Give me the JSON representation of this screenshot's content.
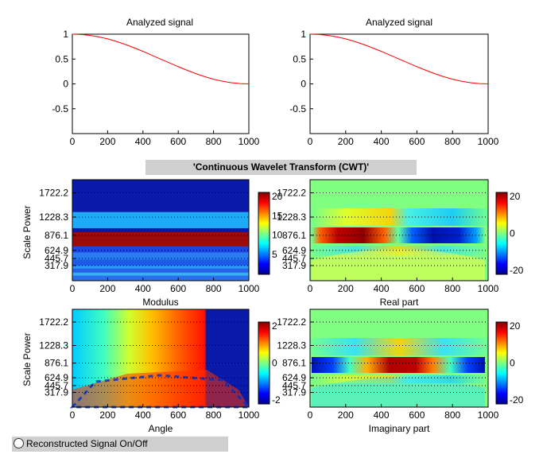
{
  "banner": {
    "label": "'Continuous Wavelet Transform (CWT)'"
  },
  "toggle": {
    "label": "Reconstructed Signal On/Off"
  },
  "chart_data": [
    {
      "id": "signal-left",
      "type": "line",
      "title": "Analyzed signal",
      "xlim": [
        0,
        1000
      ],
      "ylim": [
        -1,
        1
      ],
      "x_ticks": [
        0,
        200,
        400,
        600,
        800,
        1000
      ],
      "y_ticks": [
        1,
        0.5,
        0,
        -0.5
      ],
      "y_tick_labels": [
        "1",
        "0.5",
        "0",
        "-0.5"
      ],
      "series": [
        {
          "color": "#ff0000",
          "x": [
            0,
            50,
            100,
            150,
            200,
            250,
            300,
            350,
            400,
            450,
            500,
            550,
            600,
            650,
            700,
            750,
            800,
            850,
            900,
            950,
            1000
          ],
          "y": [
            1,
            0.994,
            0.976,
            0.946,
            0.905,
            0.854,
            0.794,
            0.727,
            0.655,
            0.578,
            0.5,
            0.422,
            0.345,
            0.273,
            0.206,
            0.146,
            0.095,
            0.054,
            0.024,
            0.006,
            0
          ]
        }
      ]
    },
    {
      "id": "signal-right",
      "type": "line",
      "title": "Analyzed signal",
      "xlim": [
        0,
        1000
      ],
      "ylim": [
        -1,
        1
      ],
      "x_ticks": [
        0,
        200,
        400,
        600,
        800,
        1000
      ],
      "y_ticks": [
        1,
        0.5,
        0,
        -0.5
      ],
      "y_tick_labels": [
        "1",
        "0.5",
        "0",
        "-0.5"
      ],
      "series": [
        {
          "color": "#ff0000",
          "x": [
            0,
            50,
            100,
            150,
            200,
            250,
            300,
            350,
            400,
            450,
            500,
            550,
            600,
            650,
            700,
            750,
            800,
            850,
            900,
            950,
            1000
          ],
          "y": [
            1,
            0.994,
            0.976,
            0.946,
            0.905,
            0.854,
            0.794,
            0.727,
            0.655,
            0.578,
            0.5,
            0.422,
            0.345,
            0.273,
            0.206,
            0.146,
            0.095,
            0.054,
            0.024,
            0.006,
            0
          ]
        }
      ]
    },
    {
      "id": "modulus",
      "type": "heatmap",
      "xlabel": "Modulus",
      "ylabel": "Scale Power",
      "xlim": [
        0,
        1000
      ],
      "x_ticks": [
        0,
        200,
        400,
        600,
        800,
        1000
      ],
      "y_tick_labels": [
        "1722.2",
        "1228.3",
        "876.1",
        "624.9",
        "445.7",
        "317.9"
      ],
      "colorbar": {
        "ticks": [
          "20",
          "15",
          "10",
          "5"
        ]
      },
      "bands": [
        {
          "color": "#0a1aa8",
          "y0": 0,
          "y1": 0.32
        },
        {
          "color": "#1eaaf5",
          "y0": 0.32,
          "y1": 0.48
        },
        {
          "color": "#0a1aa8",
          "y0": 0.48,
          "y1": 0.52
        },
        {
          "color": "#9a0c0c",
          "y0": 0.52,
          "y1": 0.66
        },
        {
          "color": "#1e46dc",
          "y0": 0.66,
          "y1": 0.72
        },
        {
          "color": "#2a7af0",
          "y0": 0.72,
          "y1": 0.79
        },
        {
          "color": "#1e5ae6",
          "y0": 0.79,
          "y1": 0.85
        },
        {
          "color": "#2a9af5",
          "y0": 0.85,
          "y1": 0.88
        },
        {
          "color": "#2460e8",
          "y0": 0.88,
          "y1": 0.92
        },
        {
          "color": "#38b0f0",
          "y0": 0.92,
          "y1": 0.95
        },
        {
          "color": "#2a70ee",
          "y0": 0.95,
          "y1": 1
        }
      ]
    },
    {
      "id": "real-part",
      "type": "heatmap",
      "xlabel": "Real part",
      "xlim": [
        0,
        1000
      ],
      "x_ticks": [
        0,
        200,
        400,
        600,
        800,
        1000
      ],
      "y_tick_labels": [
        "1722.2",
        "1228.3",
        "876.1",
        "624.9",
        "445.7",
        "317.9"
      ],
      "colorbar": {
        "ticks": [
          "20",
          "0",
          "-20"
        ]
      }
    },
    {
      "id": "angle",
      "type": "heatmap",
      "xlabel": "Angle",
      "ylabel": "Scale Power",
      "xlim": [
        0,
        1000
      ],
      "x_ticks": [
        0,
        200,
        400,
        600,
        800,
        1000
      ],
      "y_tick_labels": [
        "1722.2",
        "1228.3",
        "876.1",
        "624.9",
        "445.7",
        "317.9"
      ],
      "colorbar": {
        "ticks": [
          "2",
          "0",
          "-2"
        ]
      }
    },
    {
      "id": "imaginary-part",
      "type": "heatmap",
      "xlabel": "Imaginary part",
      "xlim": [
        0,
        1000
      ],
      "x_ticks": [
        0,
        200,
        400,
        600,
        800,
        1000
      ],
      "y_tick_labels": [
        "1722.2",
        "1228.3",
        "876.1",
        "624.9",
        "445.7",
        "317.9"
      ],
      "colorbar": {
        "ticks": [
          "20",
          "0",
          "-20"
        ]
      }
    }
  ]
}
